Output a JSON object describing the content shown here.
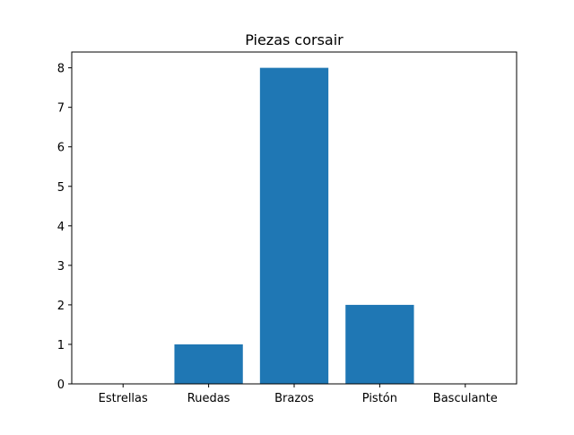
{
  "chart_data": {
    "type": "bar",
    "title": "Piezas corsair",
    "xlabel": "",
    "ylabel": "",
    "categories": [
      "Estrellas",
      "Ruedas",
      "Brazos",
      "Pistón",
      "Basculante"
    ],
    "values": [
      0,
      1,
      8,
      2,
      0
    ],
    "ylim": [
      0,
      8.4
    ],
    "yticks": [
      0,
      1,
      2,
      3,
      4,
      5,
      6,
      7,
      8
    ],
    "bar_color": "#1f77b4",
    "grid": false,
    "legend": "none"
  }
}
